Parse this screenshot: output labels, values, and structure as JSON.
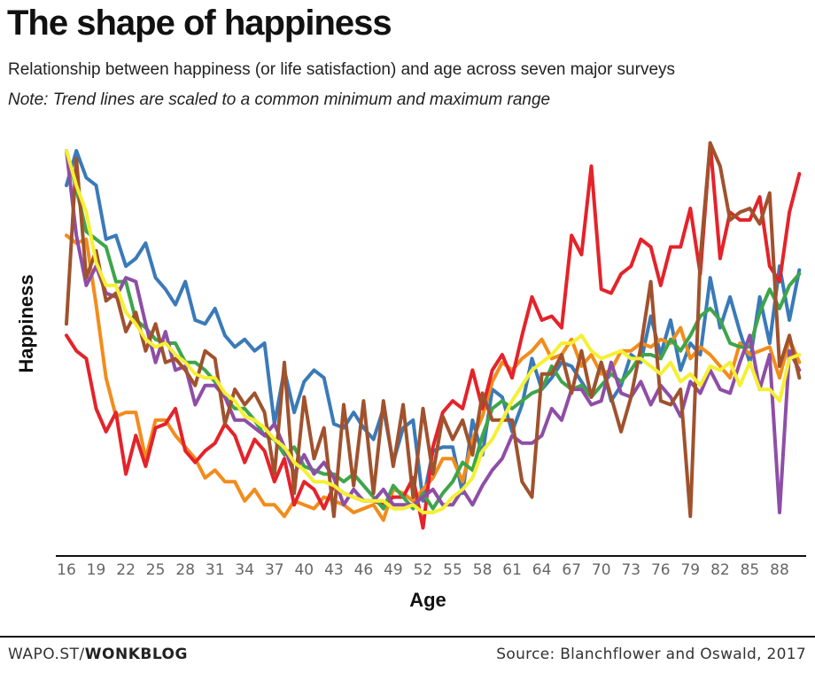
{
  "header": {
    "title": "The shape of happiness",
    "subtitle": "Relationship between happiness (or life satisfaction) and age across seven major surveys",
    "note": "Note: Trend lines are scaled to a common minimum and maximum range"
  },
  "footer": {
    "brand_prefix": "WAPO.ST/",
    "brand_bold": "WONKBLOG",
    "source": "Source: Blanchflower and Oswald, 2017"
  },
  "chart_data": {
    "type": "line",
    "xlabel": "Age",
    "ylabel": "Happiness",
    "xlim": [
      15,
      91
    ],
    "ylim": [
      0,
      1
    ],
    "xticks": [
      16,
      19,
      22,
      25,
      28,
      31,
      34,
      37,
      40,
      43,
      46,
      49,
      52,
      55,
      58,
      61,
      64,
      67,
      70,
      73,
      76,
      79,
      82,
      85,
      88
    ],
    "grid": false,
    "legend": "none",
    "x": [
      16,
      17,
      18,
      19,
      20,
      21,
      22,
      23,
      24,
      25,
      26,
      27,
      28,
      29,
      30,
      31,
      32,
      33,
      34,
      35,
      36,
      37,
      38,
      39,
      40,
      41,
      42,
      43,
      44,
      45,
      46,
      47,
      48,
      49,
      50,
      51,
      52,
      53,
      54,
      55,
      56,
      57,
      58,
      59,
      60,
      61,
      62,
      63,
      64,
      65,
      66,
      67,
      68,
      69,
      70,
      71,
      72,
      73,
      74,
      75,
      76,
      77,
      78,
      79,
      80,
      81,
      82,
      83,
      84,
      85,
      86,
      87,
      88,
      89,
      90
    ],
    "series": [
      {
        "color": "#3a7ab8",
        "values": [
          0.91,
          1.0,
          0.93,
          0.91,
          0.77,
          0.78,
          0.7,
          0.72,
          0.76,
          0.67,
          0.64,
          0.6,
          0.66,
          0.56,
          0.55,
          0.59,
          0.52,
          0.49,
          0.51,
          0.48,
          0.5,
          0.29,
          0.43,
          0.32,
          0.4,
          0.43,
          0.41,
          0.29,
          0.28,
          0.32,
          0.28,
          0.25,
          0.33,
          0.19,
          0.28,
          0.3,
          0.09,
          0.22,
          0.23,
          0.23,
          0.11,
          0.3,
          0.21,
          0.38,
          0.36,
          0.27,
          0.34,
          0.46,
          0.38,
          0.41,
          0.45,
          0.44,
          0.4,
          0.36,
          0.45,
          0.35,
          0.39,
          0.47,
          0.45,
          0.57,
          0.47,
          0.56,
          0.43,
          0.5,
          0.47,
          0.67,
          0.54,
          0.62,
          0.53,
          0.45,
          0.62,
          0.5,
          0.7,
          0.56,
          0.69
        ]
      },
      {
        "color": "#f28c1c",
        "values": [
          0.78,
          0.76,
          0.77,
          0.6,
          0.41,
          0.31,
          0.32,
          0.32,
          0.2,
          0.3,
          0.3,
          0.26,
          0.23,
          0.2,
          0.15,
          0.17,
          0.14,
          0.14,
          0.09,
          0.12,
          0.08,
          0.08,
          0.05,
          0.09,
          0.08,
          0.07,
          0.1,
          0.09,
          0.08,
          0.06,
          0.07,
          0.08,
          0.04,
          0.12,
          0.11,
          0.09,
          0.12,
          0.15,
          0.2,
          0.2,
          0.14,
          0.25,
          0.31,
          0.4,
          0.45,
          0.43,
          0.46,
          0.48,
          0.51,
          0.46,
          0.47,
          0.51,
          0.44,
          0.47,
          0.42,
          0.43,
          0.48,
          0.48,
          0.5,
          0.49,
          0.51,
          0.5,
          0.54,
          0.46,
          0.49,
          0.47,
          0.44,
          0.41,
          0.5,
          0.47,
          0.48,
          0.49,
          0.41,
          0.51,
          0.45
        ]
      },
      {
        "color": "#e4232a",
        "values": [
          0.52,
          0.48,
          0.46,
          0.33,
          0.27,
          0.32,
          0.16,
          0.26,
          0.18,
          0.28,
          0.29,
          0.33,
          0.22,
          0.19,
          0.22,
          0.24,
          0.29,
          0.26,
          0.19,
          0.25,
          0.22,
          0.14,
          0.2,
          0.08,
          0.14,
          0.12,
          0.07,
          0.13,
          0.11,
          0.1,
          0.09,
          0.09,
          0.08,
          0.1,
          0.1,
          0.15,
          0.02,
          0.23,
          0.32,
          0.35,
          0.33,
          0.43,
          0.33,
          0.43,
          0.47,
          0.41,
          0.52,
          0.62,
          0.56,
          0.57,
          0.54,
          0.78,
          0.73,
          0.96,
          0.64,
          0.63,
          0.68,
          0.7,
          0.77,
          0.75,
          0.65,
          0.75,
          0.75,
          0.85,
          0.68,
          1.02,
          0.72,
          0.84,
          0.82,
          0.82,
          0.88,
          0.7,
          0.66,
          0.84,
          0.94
        ]
      },
      {
        "color": "#3ea54a",
        "values": [
          1.0,
          0.9,
          0.79,
          0.77,
          0.75,
          0.66,
          0.66,
          0.56,
          0.54,
          0.51,
          0.5,
          0.5,
          0.45,
          0.45,
          0.43,
          0.4,
          0.36,
          0.33,
          0.33,
          0.3,
          0.26,
          0.25,
          0.21,
          0.23,
          0.18,
          0.17,
          0.16,
          0.16,
          0.14,
          0.16,
          0.13,
          0.1,
          0.07,
          0.13,
          0.1,
          0.07,
          0.11,
          0.07,
          0.11,
          0.14,
          0.19,
          0.17,
          0.26,
          0.33,
          0.35,
          0.33,
          0.35,
          0.37,
          0.38,
          0.44,
          0.4,
          0.38,
          0.39,
          0.36,
          0.39,
          0.42,
          0.4,
          0.43,
          0.47,
          0.47,
          0.46,
          0.51,
          0.48,
          0.52,
          0.57,
          0.59,
          0.56,
          0.5,
          0.49,
          0.49,
          0.58,
          0.64,
          0.59,
          0.65,
          0.68
        ]
      },
      {
        "color": "#8e4ea6",
        "values": [
          1.0,
          0.78,
          0.65,
          0.7,
          0.63,
          0.62,
          0.67,
          0.66,
          0.55,
          0.45,
          0.53,
          0.43,
          0.44,
          0.34,
          0.39,
          0.39,
          0.36,
          0.3,
          0.3,
          0.28,
          0.26,
          0.29,
          0.23,
          0.16,
          0.21,
          0.16,
          0.19,
          0.15,
          0.08,
          0.12,
          0.09,
          0.09,
          0.12,
          0.08,
          0.08,
          0.08,
          0.1,
          0.12,
          0.08,
          0.08,
          0.12,
          0.08,
          0.13,
          0.17,
          0.2,
          0.26,
          0.24,
          0.24,
          0.26,
          0.33,
          0.3,
          0.38,
          0.38,
          0.34,
          0.35,
          0.45,
          0.37,
          0.36,
          0.4,
          0.34,
          0.39,
          0.36,
          0.31,
          0.4,
          0.37,
          0.43,
          0.38,
          0.37,
          0.45,
          0.52,
          0.38,
          0.47,
          0.06,
          0.48,
          0.43
        ]
      },
      {
        "color": "#a0522d",
        "values": [
          0.55,
          0.98,
          0.67,
          0.74,
          0.61,
          0.63,
          0.53,
          0.58,
          0.48,
          0.55,
          0.45,
          0.46,
          0.43,
          0.39,
          0.48,
          0.46,
          0.29,
          0.38,
          0.34,
          0.37,
          0.32,
          0.16,
          0.45,
          0.11,
          0.36,
          0.2,
          0.28,
          0.05,
          0.34,
          0.13,
          0.35,
          0.11,
          0.35,
          0.18,
          0.34,
          0.1,
          0.33,
          0.16,
          0.31,
          0.25,
          0.3,
          0.21,
          0.37,
          0.3,
          0.3,
          0.3,
          0.14,
          0.1,
          0.42,
          0.42,
          0.47,
          0.37,
          0.48,
          0.36,
          0.45,
          0.36,
          0.27,
          0.36,
          0.49,
          0.66,
          0.35,
          0.34,
          0.38,
          0.05,
          0.72,
          1.02,
          0.96,
          0.82,
          0.84,
          0.85,
          0.81,
          0.89,
          0.44,
          0.52,
          0.41
        ]
      },
      {
        "color": "#f5f033",
        "values": [
          1.0,
          0.91,
          0.84,
          0.71,
          0.65,
          0.65,
          0.58,
          0.55,
          0.51,
          0.49,
          0.5,
          0.47,
          0.45,
          0.42,
          0.41,
          0.41,
          0.37,
          0.35,
          0.31,
          0.3,
          0.28,
          0.25,
          0.23,
          0.19,
          0.17,
          0.14,
          0.14,
          0.13,
          0.11,
          0.1,
          0.09,
          0.09,
          0.09,
          0.07,
          0.07,
          0.08,
          0.06,
          0.06,
          0.07,
          0.1,
          0.12,
          0.15,
          0.22,
          0.25,
          0.3,
          0.35,
          0.39,
          0.43,
          0.45,
          0.47,
          0.5,
          0.5,
          0.52,
          0.48,
          0.46,
          0.47,
          0.48,
          0.46,
          0.46,
          0.44,
          0.42,
          0.45,
          0.4,
          0.42,
          0.39,
          0.44,
          0.43,
          0.45,
          0.39,
          0.45,
          0.38,
          0.38,
          0.35,
          0.46,
          0.47
        ]
      }
    ]
  }
}
